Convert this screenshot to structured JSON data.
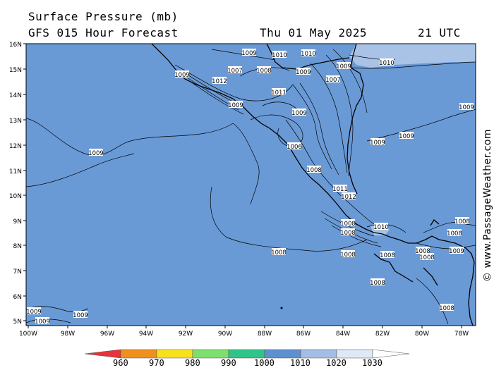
{
  "header": {
    "title": "Surface Pressure (mb)",
    "subtitle": "GFS 015 Hour Forecast",
    "date": "Thu 01 May 2025",
    "time": "21 UTC"
  },
  "credit": "© www.PassageWeather.com",
  "map": {
    "lat_labels": [
      "16N",
      "15N",
      "14N",
      "13N",
      "12N",
      "11N",
      "10N",
      "9N",
      "8N",
      "7N",
      "6N",
      "5N"
    ],
    "lon_labels": [
      "100W",
      "98W",
      "96W",
      "94W",
      "92W",
      "90W",
      "88W",
      "86W",
      "84W",
      "82W",
      "80W",
      "78W"
    ],
    "base_color": "#6a9ad6",
    "high_color": "#a9c3e6",
    "isobar_labels": [
      {
        "id": "p1009a",
        "text": "1009"
      },
      {
        "id": "p1008a",
        "text": "1008"
      },
      {
        "id": "p1009b",
        "text": "1009"
      },
      {
        "id": "p1009c",
        "text": "1009"
      },
      {
        "id": "p1006a",
        "text": "1006"
      },
      {
        "id": "p1008b",
        "text": "1008"
      },
      {
        "id": "p1008c",
        "text": "1008"
      },
      {
        "id": "p1008d",
        "text": "1008"
      },
      {
        "id": "p1008e",
        "text": "1008"
      },
      {
        "id": "p1009d",
        "text": "1009"
      },
      {
        "id": "p1009e",
        "text": "1009"
      },
      {
        "id": "p1010a",
        "text": "1010"
      },
      {
        "id": "p1009f",
        "text": "1009"
      },
      {
        "id": "p1009g",
        "text": "1009"
      },
      {
        "id": "p1007a",
        "text": "1007"
      },
      {
        "id": "p1008f",
        "text": "1008"
      },
      {
        "id": "p1008g",
        "text": "1008"
      },
      {
        "id": "p1009h",
        "text": "1009"
      },
      {
        "id": "p1009i",
        "text": "1009"
      },
      {
        "id": "p1010b",
        "text": "1010"
      },
      {
        "id": "p1012a",
        "text": "1012"
      },
      {
        "id": "p1011a",
        "text": "1011"
      },
      {
        "id": "p1008h",
        "text": "1008"
      },
      {
        "id": "p1008i",
        "text": "1008"
      },
      {
        "id": "p1009j",
        "text": "1009"
      },
      {
        "id": "p1008k",
        "text": "1008"
      },
      {
        "id": "p1010c",
        "text": "1010"
      },
      {
        "id": "p1007b",
        "text": "1007"
      },
      {
        "id": "p1008l",
        "text": "1008"
      },
      {
        "id": "p1009k",
        "text": "1009"
      },
      {
        "id": "p1009l",
        "text": "1009"
      },
      {
        "id": "p1010d",
        "text": "1010"
      },
      {
        "id": "p1009m",
        "text": "1009"
      },
      {
        "id": "p1011b",
        "text": "1011"
      },
      {
        "id": "p1012b",
        "text": "1012"
      },
      {
        "id": "p1009n",
        "text": "1009"
      },
      {
        "id": "p1008m",
        "text": "1008"
      },
      {
        "id": "p1008n",
        "text": "1008"
      }
    ]
  },
  "colorbar": {
    "labels": [
      "960",
      "970",
      "980",
      "990",
      "1000",
      "1010",
      "1020",
      "1030"
    ],
    "colors": [
      "#e8333a",
      "#f0901c",
      "#f7e11b",
      "#7de06c",
      "#2ec48a",
      "#5e8fd1",
      "#a3bde4",
      "#dfe8f6"
    ]
  }
}
